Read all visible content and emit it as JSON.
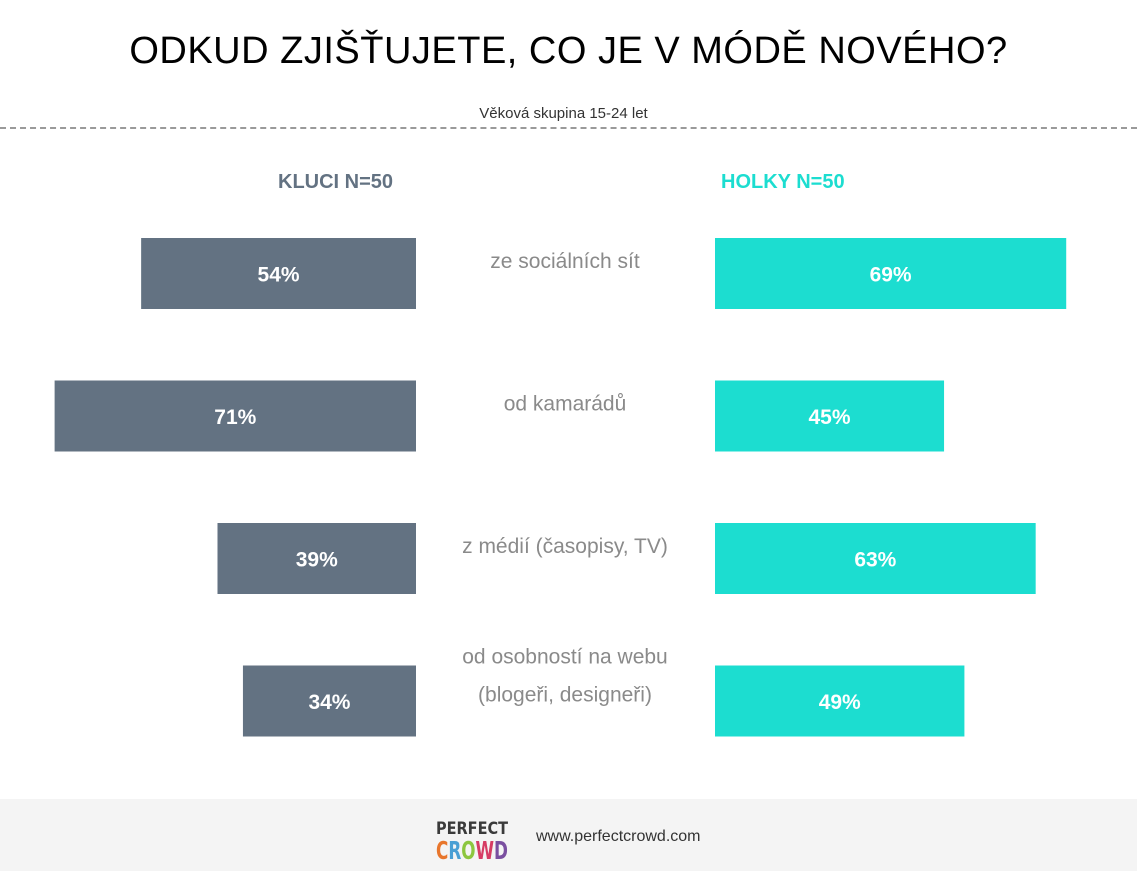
{
  "title": "ODKUD ZJIŠŤUJETE, CO JE V MÓDĚ NOVÉHO?",
  "subtitle": "Věková skupina 15-24 let",
  "chart_data": {
    "type": "bar",
    "title": "ODKUD ZJIŠŤUJETE, CO JE V MÓDĚ NOVÉHO?",
    "subtitle": "Věková skupina 15-24 let",
    "categories": [
      [
        "ze sociálních sít"
      ],
      [
        "od kamarádů"
      ],
      [
        "z médií (časopisy, TV)"
      ],
      [
        "od osobností na webu",
        "(blogeři, designeři)"
      ]
    ],
    "series": [
      {
        "name": "KLUCI N=50",
        "values": [
          54,
          71,
          39,
          34
        ],
        "labels": [
          "54%",
          "71%",
          "39%",
          "34%"
        ],
        "color": "#637282"
      },
      {
        "name": "HOLKY N=50",
        "values": [
          69,
          45,
          63,
          49
        ],
        "labels": [
          "69%",
          "45%",
          "63%",
          "49%"
        ],
        "color": "#1cddd0"
      }
    ],
    "orientation": "horizontal-butterfly",
    "unit": "%",
    "grid": false
  },
  "footer": {
    "logo_text": [
      "PERFECT",
      "CROWD"
    ],
    "website": "www.perfectcrowd.com"
  },
  "colors": {
    "boys": "#637282",
    "girls": "#1cddd0",
    "category_text": "#8a8a8a",
    "footer_bg": "#f4f4f4"
  }
}
